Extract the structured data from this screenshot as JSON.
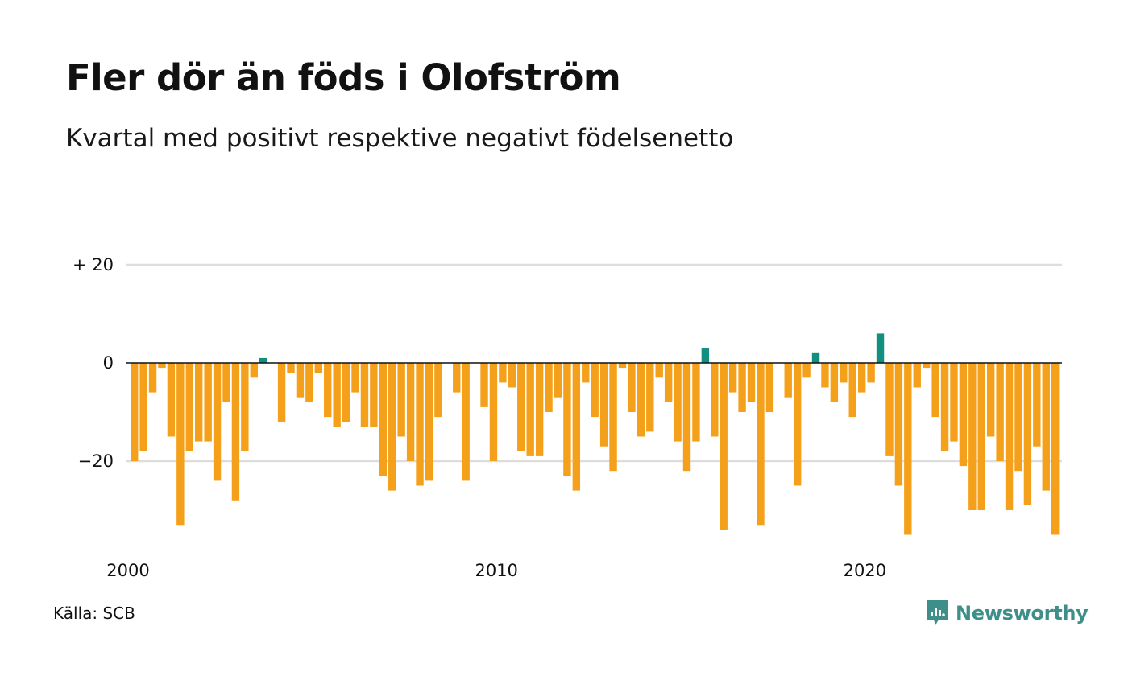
{
  "chart_data": {
    "type": "bar",
    "title": "Fler dör än föds i Olofström",
    "subtitle": "Kvartal med positivt respektive negativt födelsenetto",
    "xlabel": "",
    "ylabel": "",
    "x_start": 2000,
    "ylim": [
      -38,
      20
    ],
    "y_ticks": [
      {
        "value": 20,
        "label": "+ 20"
      },
      {
        "value": 0,
        "label": "0"
      },
      {
        "value": -20,
        "label": "−20"
      }
    ],
    "x_ticks": [
      {
        "year": 2000,
        "label": "2000"
      },
      {
        "year": 2010,
        "label": "2010"
      },
      {
        "year": 2020,
        "label": "2020"
      }
    ],
    "colors": {
      "positive": "#138f80",
      "negative": "#f5a01a",
      "grid": "#dddddd",
      "axis": "#111111"
    },
    "series": [
      {
        "values": [
          -20,
          -18,
          -6,
          -1,
          -15,
          -33,
          -18,
          -16,
          -16,
          -24,
          -8,
          -28,
          -18,
          -3,
          1,
          0,
          -12,
          -2,
          -7,
          -8,
          -2,
          -11,
          -13,
          -12,
          -6,
          -13,
          -13,
          -23,
          -26,
          -15,
          -20,
          -25,
          -24,
          -11,
          0,
          -6,
          -24,
          0,
          -9,
          -20,
          -4,
          -5,
          -18,
          -19,
          -19,
          -10,
          -7,
          -23,
          -26,
          -4,
          -11,
          -17,
          -22,
          -1,
          -10,
          -15,
          -14,
          -3,
          -8,
          -16,
          -22,
          -16,
          3,
          -15,
          -34,
          -6,
          -10,
          -8,
          -33,
          -10,
          0,
          -7,
          -25,
          -3,
          2,
          -5,
          -8,
          -4,
          -11,
          -6,
          -4,
          6,
          -19,
          -25,
          -35,
          -5,
          -1,
          -11,
          -18,
          -16,
          -21,
          -30,
          -30,
          -15,
          -20,
          -30,
          -22,
          -29,
          -17,
          -26,
          -35
        ]
      }
    ]
  },
  "footer": {
    "source": "Källa: SCB",
    "brand": "Newsworthy"
  }
}
